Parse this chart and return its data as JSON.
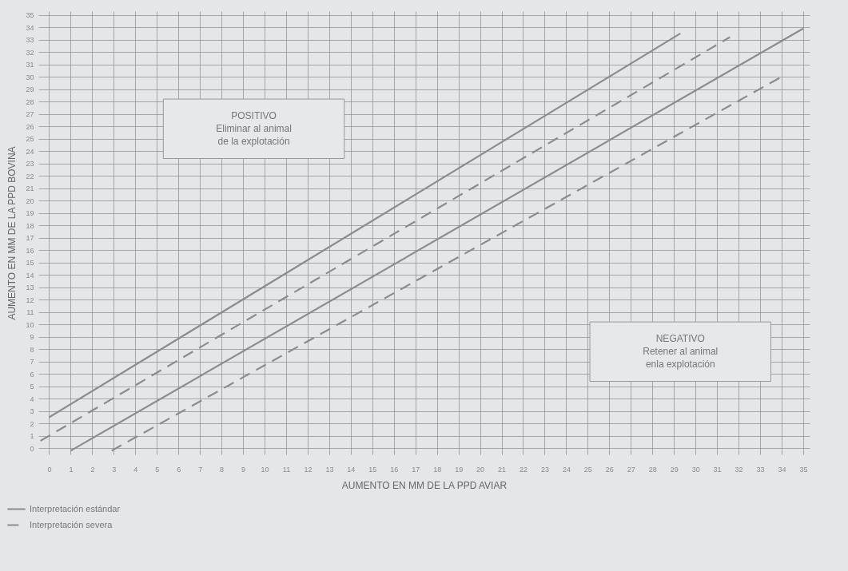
{
  "chart_data": {
    "type": "line",
    "xlabel": "AUMENTO EN MM DE LA PPD AVIAR",
    "ylabel": "AUMENTO EN MM DE LA PPD BOVINA",
    "xlim": [
      -0.5,
      35.3
    ],
    "ylim": [
      -0.5,
      35.3
    ],
    "xticks": [
      0,
      1,
      2,
      3,
      4,
      5,
      6,
      7,
      8,
      9,
      10,
      11,
      12,
      13,
      14,
      15,
      16,
      17,
      18,
      19,
      20,
      21,
      22,
      23,
      24,
      25,
      26,
      27,
      28,
      29,
      30,
      31,
      32,
      33,
      34,
      35
    ],
    "yticks": [
      0,
      1,
      2,
      3,
      4,
      5,
      6,
      7,
      8,
      9,
      10,
      11,
      12,
      13,
      14,
      15,
      16,
      17,
      18,
      19,
      20,
      21,
      22,
      23,
      24,
      25,
      26,
      27,
      28,
      29,
      30,
      31,
      32,
      33,
      34,
      35
    ],
    "grid": true,
    "legend": "bottom left",
    "marker": "none",
    "series": [
      {
        "name": "Interpretación estándar",
        "color": "#8c8c8c",
        "line_style": "solid",
        "x": [
          0,
          29.3
        ],
        "values": [
          2.5,
          33.5
        ]
      },
      {
        "color": "#8c8c8c",
        "line_style": "solid",
        "x": [
          1,
          35
        ],
        "values": [
          -0.2,
          33.9
        ]
      },
      {
        "name": "Interpretación severa",
        "color": "#8c8c8c",
        "line_style": "dashed",
        "x": [
          -0.4,
          31.6
        ],
        "values": [
          0.6,
          33.2
        ]
      },
      {
        "color": "#8c8c8c",
        "line_style": "dashed",
        "x": [
          2.9,
          34.1
        ],
        "values": [
          -0.2,
          30.1
        ]
      }
    ],
    "annotations": [
      "POSITIVO\nEliminar al animal\nde la explotación",
      "NEGATIVO\nRetener al animal\nenla explotación"
    ]
  }
}
